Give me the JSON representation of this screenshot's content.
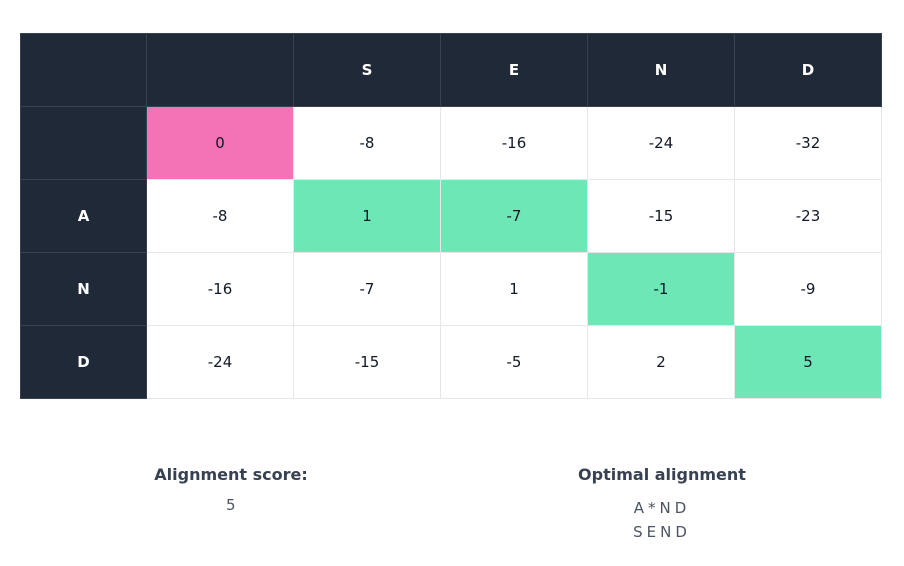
{
  "matrix": {
    "col_headers": [
      "",
      "S",
      "E",
      "N",
      "D"
    ],
    "rows": [
      {
        "label": "",
        "cells": [
          "0",
          "-8",
          "-16",
          "-24",
          "-32"
        ]
      },
      {
        "label": "A",
        "cells": [
          "-8",
          "1",
          "-7",
          "-15",
          "-23"
        ]
      },
      {
        "label": "N",
        "cells": [
          "-16",
          "-7",
          "1",
          "-1",
          "-9"
        ]
      },
      {
        "label": "D",
        "cells": [
          "-24",
          "-15",
          "-5",
          "2",
          "5"
        ]
      }
    ],
    "colors": {
      "header_bg": "#1f2937",
      "origin_cell": "#f472b6",
      "path_cell": "#6ee7b7"
    }
  },
  "score": {
    "title": "Alignment score:",
    "value": "5"
  },
  "alignment": {
    "title": "Optimal alignment",
    "line1": "A*ND",
    "line2": "SEND"
  }
}
